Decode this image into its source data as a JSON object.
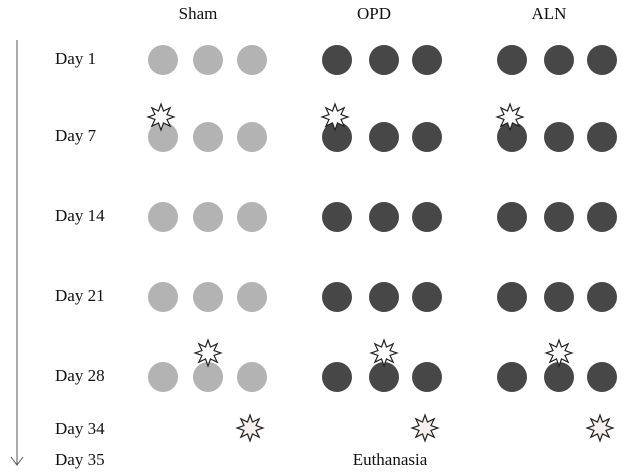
{
  "groups": [
    {
      "label": "Sham"
    },
    {
      "label": "OPD"
    },
    {
      "label": "ALN"
    }
  ],
  "days": [
    "Day 1",
    "Day 7",
    "Day 14",
    "Day 21",
    "Day 28",
    "Day 34",
    "Day 35"
  ],
  "footer": "Euthanasia"
}
